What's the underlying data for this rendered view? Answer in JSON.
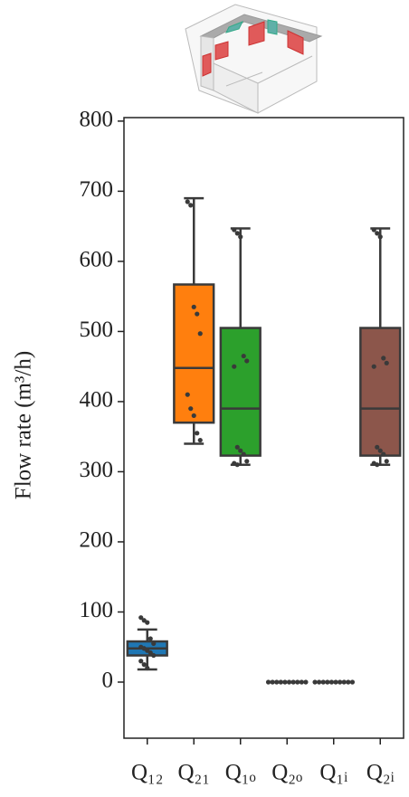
{
  "chart_data": {
    "type": "box",
    "ylabel": "Flow rate (m³/h)",
    "categories": [
      "Q₁₂",
      "Q₂₁",
      "Q₁ₒ",
      "Q₂ₒ",
      "Q₁ᵢ",
      "Q₂ᵢ"
    ],
    "ylim": [
      -80,
      805
    ],
    "yticks": [
      0,
      100,
      200,
      300,
      400,
      500,
      600,
      700,
      800
    ],
    "boxes": [
      {
        "color": "#1f77b4",
        "whislo": 18,
        "q1": 38,
        "med": 48,
        "q3": 58,
        "whishi": 75,
        "points": [
          92,
          88,
          85,
          62,
          55,
          50,
          48,
          45,
          42,
          38,
          30,
          25,
          20
        ]
      },
      {
        "color": "#ff7f0e",
        "whislo": 340,
        "q1": 370,
        "med": 448,
        "q3": 567,
        "whishi": 690,
        "points": [
          685,
          680,
          535,
          525,
          497,
          410,
          390,
          380,
          355,
          345
        ]
      },
      {
        "color": "#2ca02c",
        "whislo": 310,
        "q1": 323,
        "med": 390,
        "q3": 505,
        "whishi": 647,
        "points": [
          645,
          640,
          635,
          465,
          458,
          450,
          335,
          330,
          325,
          315,
          312,
          310
        ]
      },
      {
        "color": "#d62728",
        "whislo": 0,
        "q1": 0,
        "med": 0,
        "q3": 0,
        "whishi": 0,
        "points": [
          0,
          0,
          0,
          0,
          0,
          0,
          0,
          0,
          0,
          0
        ]
      },
      {
        "color": "#9467bd",
        "whislo": 0,
        "q1": 0,
        "med": 0,
        "q3": 0,
        "whishi": 0,
        "points": [
          0,
          0,
          0,
          0,
          0,
          0,
          0,
          0,
          0,
          0
        ]
      },
      {
        "color": "#8c564b",
        "whislo": 310,
        "q1": 323,
        "med": 390,
        "q3": 505,
        "whishi": 647,
        "points": [
          645,
          640,
          635,
          462,
          455,
          450,
          335,
          330,
          325,
          315,
          312,
          310
        ]
      }
    ]
  }
}
